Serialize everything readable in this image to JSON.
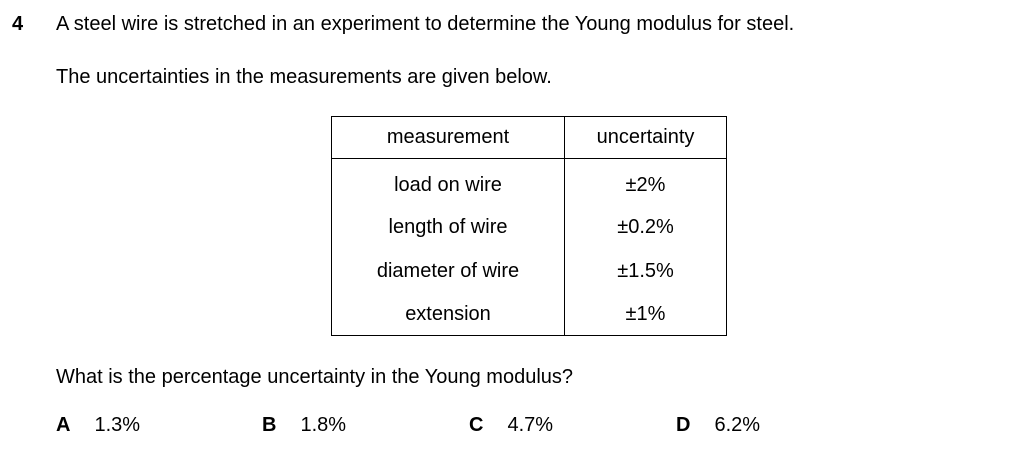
{
  "question": {
    "number": "4",
    "stem": "A steel wire is stretched in an experiment to determine the Young modulus for steel.",
    "intro": "The uncertainties in the measurements are given below.",
    "prompt": "What is the percentage uncertainty in the Young modulus?"
  },
  "table": {
    "headers": [
      "measurement",
      "uncertainty"
    ],
    "rows": [
      [
        "load on wire",
        "±2%"
      ],
      [
        "length of wire",
        "±0.2%"
      ],
      [
        "diameter of wire",
        "±1.5%"
      ],
      [
        "extension",
        "±1%"
      ]
    ]
  },
  "options": [
    {
      "letter": "A",
      "value": "1.3%"
    },
    {
      "letter": "B",
      "value": "1.8%"
    },
    {
      "letter": "C",
      "value": "4.7%"
    },
    {
      "letter": "D",
      "value": "6.2%"
    }
  ]
}
